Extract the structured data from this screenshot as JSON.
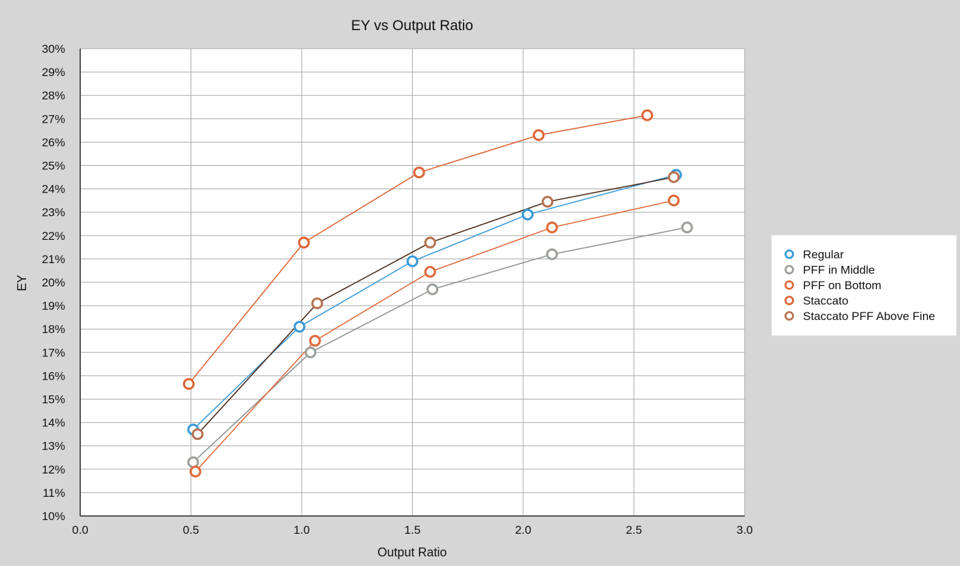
{
  "chart_data": {
    "type": "line",
    "title": "EY vs Output Ratio",
    "xlabel": "Output Ratio",
    "ylabel": "EY",
    "xlim": [
      0.0,
      3.0
    ],
    "ylim": [
      10,
      30
    ],
    "x_ticks": [
      "0.0",
      "0.5",
      "1.0",
      "1.5",
      "2.0",
      "2.5",
      "3.0"
    ],
    "y_ticks": [
      "10%",
      "11%",
      "12%",
      "13%",
      "14%",
      "15%",
      "16%",
      "17%",
      "18%",
      "19%",
      "20%",
      "21%",
      "22%",
      "23%",
      "24%",
      "25%",
      "26%",
      "27%",
      "28%",
      "29%",
      "30%"
    ],
    "grid": true,
    "legend_position": "right",
    "series": [
      {
        "name": "Regular",
        "color": "#3a9ad9",
        "line_color": "#3a9ad9",
        "points": [
          [
            0.51,
            13.7
          ],
          [
            0.99,
            18.1
          ],
          [
            1.5,
            20.9
          ],
          [
            2.02,
            22.9
          ],
          [
            2.69,
            24.6
          ]
        ]
      },
      {
        "name": "PFF in Middle",
        "color": "#9aa19a",
        "line_color": "#8a928a",
        "points": [
          [
            0.51,
            12.3
          ],
          [
            1.04,
            17.0
          ],
          [
            1.59,
            19.7
          ],
          [
            2.13,
            21.2
          ],
          [
            2.74,
            22.35
          ]
        ]
      },
      {
        "name": "PFF on Bottom",
        "color": "#e06a3b",
        "line_color": "#e06a3b",
        "points": [
          [
            0.52,
            11.9
          ],
          [
            1.06,
            17.5
          ],
          [
            1.58,
            20.45
          ],
          [
            2.13,
            22.35
          ],
          [
            2.68,
            23.5
          ]
        ]
      },
      {
        "name": "Staccato",
        "color": "#dd6536",
        "line_color": "#dd6536",
        "points": [
          [
            0.49,
            15.65
          ],
          [
            1.01,
            21.7
          ],
          [
            1.53,
            24.7
          ],
          [
            2.07,
            26.3
          ],
          [
            2.56,
            27.15
          ]
        ]
      },
      {
        "name": "Staccato PFF Above Fine",
        "color": "#b87352",
        "line_color": "#4a2a1a",
        "points": [
          [
            0.53,
            13.5
          ],
          [
            1.07,
            19.1
          ],
          [
            1.58,
            21.7
          ],
          [
            2.11,
            23.45
          ],
          [
            2.68,
            24.5
          ]
        ]
      }
    ]
  }
}
